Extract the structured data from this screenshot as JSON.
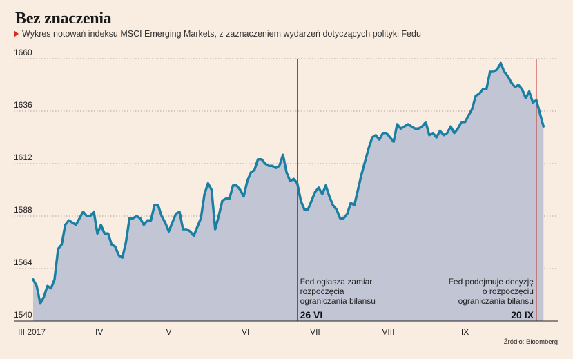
{
  "title": "Bez znaczenia",
  "subtitle": "Wykres notowań indeksu MSCI Emerging Markets, z zaznaczeniem wydarzeń dotyczących polityki Fedu",
  "source": "Źródło: Bloomberg",
  "colors": {
    "line": "#1b7ea3",
    "area": "#c2c6d4",
    "event_line": "#b8281e",
    "accent": "#d62b20",
    "background": "#f9ece0"
  },
  "chart_data": {
    "type": "area",
    "title": "Bez znaczenia",
    "ylim": [
      1540,
      1660
    ],
    "yticks": [
      1540,
      1564,
      1588,
      1612,
      1636,
      1660
    ],
    "xlim": [
      0,
      147
    ],
    "month_labels": [
      {
        "label": "III 2017",
        "x": 0
      },
      {
        "label": "IV",
        "x": 18.5
      },
      {
        "label": "V",
        "x": 38
      },
      {
        "label": "VI",
        "x": 59.5
      },
      {
        "label": "VII",
        "x": 79
      },
      {
        "label": "VIII",
        "x": 99.5
      },
      {
        "label": "IX",
        "x": 121
      }
    ],
    "events": [
      {
        "x": 74,
        "date": "26 VI",
        "text": [
          "Fed ogłasza zamiar",
          "rozpoczęcia",
          "ograniczania bilansu"
        ],
        "align": "start"
      },
      {
        "x": 141,
        "date": "20 IX",
        "text": [
          "Fed podejmuje decyzję",
          "o rozpoczęciu",
          "ograniczania bilansu"
        ],
        "align": "end"
      }
    ],
    "values": [
      1559,
      1556,
      1548,
      1551,
      1556,
      1555,
      1559,
      1573,
      1575,
      1584,
      1586,
      1585,
      1584,
      1587,
      1590,
      1588,
      1588,
      1590,
      1580,
      1584,
      1580,
      1580,
      1575,
      1574,
      1570,
      1569,
      1576,
      1587,
      1587,
      1588,
      1587,
      1584,
      1586,
      1586,
      1593,
      1593,
      1588,
      1585,
      1581,
      1585,
      1589,
      1590,
      1582,
      1582,
      1581,
      1579,
      1583,
      1587,
      1598,
      1603,
      1600,
      1582,
      1588,
      1595,
      1596,
      1596,
      1602,
      1602,
      1600,
      1597,
      1604,
      1608,
      1609,
      1614,
      1614,
      1612,
      1611,
      1611,
      1610,
      1611,
      1616,
      1608,
      1604,
      1605,
      1603,
      1595,
      1591,
      1591,
      1595,
      1599,
      1601,
      1598,
      1602,
      1597,
      1593,
      1591,
      1587,
      1587,
      1589,
      1594,
      1593,
      1600,
      1607,
      1613,
      1619,
      1624,
      1625,
      1623,
      1626,
      1626,
      1624,
      1622,
      1630,
      1628,
      1629,
      1630,
      1629,
      1628,
      1628,
      1629,
      1631,
      1625,
      1626,
      1624,
      1627,
      1625,
      1626,
      1629,
      1626,
      1628,
      1631,
      1631,
      1634,
      1637,
      1643,
      1644,
      1646,
      1646,
      1654,
      1654,
      1655,
      1658,
      1654,
      1652,
      1649,
      1647,
      1648,
      1646,
      1642,
      1645,
      1640,
      1641,
      1635,
      1629
    ]
  }
}
